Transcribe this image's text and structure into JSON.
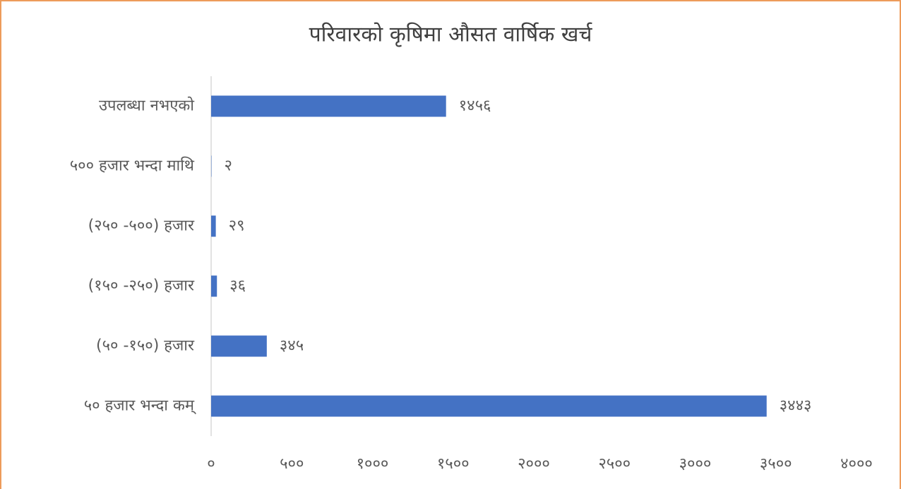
{
  "chart_data": {
    "type": "hbar",
    "title": "परिवारको कृषिमा औसत वार्षिक खर्च",
    "categories": [
      "उपलब्धा नभएको",
      "५०० हजार भन्दा माथि",
      "(२५० -५००) हजार",
      "(१५० -२५०) हजार",
      "(५० -१५०) हजार",
      "५० हजार भन्दा कम्"
    ],
    "values": [
      1456,
      2,
      29,
      36,
      345,
      3443
    ],
    "value_labels": [
      "१४५६",
      "२",
      "२९",
      "३६",
      "३४५",
      "३४४३"
    ],
    "color": "#4472c4",
    "xlim": [
      0,
      4000
    ],
    "xticks": [
      {
        "value": 0,
        "label": "०"
      },
      {
        "value": 500,
        "label": "५००"
      },
      {
        "value": 1000,
        "label": "१०००"
      },
      {
        "value": 1500,
        "label": "१५००"
      },
      {
        "value": 2000,
        "label": "२०००"
      },
      {
        "value": 2500,
        "label": "२५००"
      },
      {
        "value": 3000,
        "label": "३०००"
      },
      {
        "value": 3500,
        "label": "३५००"
      },
      {
        "value": 4000,
        "label": "४०००"
      }
    ]
  }
}
